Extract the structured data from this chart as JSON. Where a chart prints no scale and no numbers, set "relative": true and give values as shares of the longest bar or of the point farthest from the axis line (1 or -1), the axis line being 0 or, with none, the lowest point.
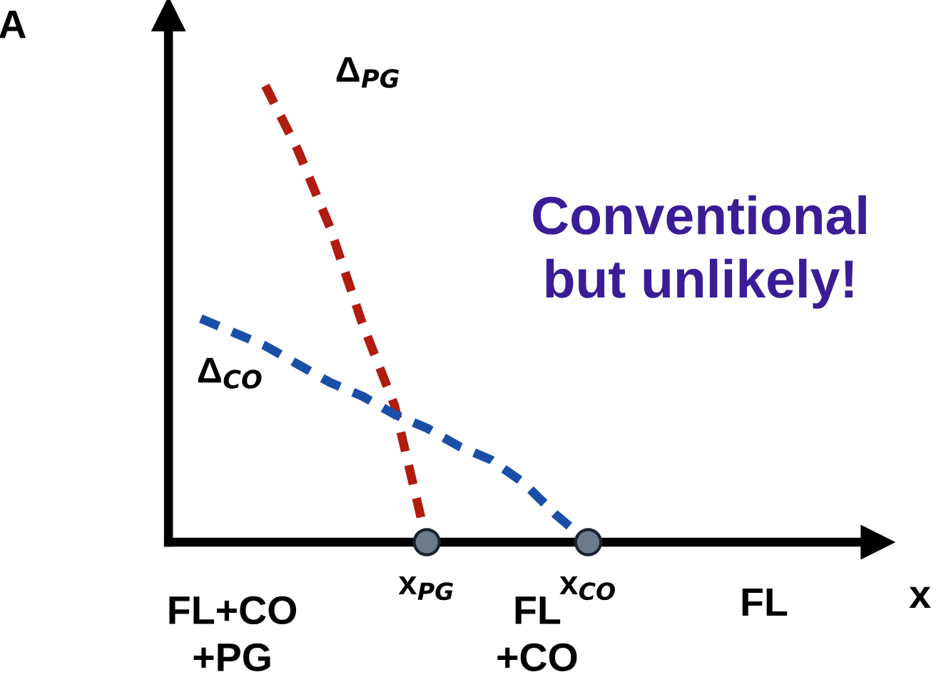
{
  "chart_data": {
    "type": "line",
    "relative": true,
    "xlabel": "x",
    "ylabel": "A",
    "categories": [
      null,
      null,
      null,
      null,
      null,
      null,
      null,
      null,
      "x$_{PG}$",
      null,
      null,
      null,
      null,
      "x$_{CO}$",
      null,
      null,
      null,
      null,
      null,
      null,
      null,
      null
    ],
    "series": [
      {
        "color": "#b01c0f",
        "values": [
          null,
          null,
          null,
          1,
          0.86,
          0.69,
          0.48,
          0.3,
          0,
          null,
          null,
          null,
          null,
          null,
          null,
          null,
          null,
          null,
          null,
          null,
          null,
          null
        ],
        "line_style": "dashed",
        "marker": "none"
      },
      {
        "color": "#1a4fa8",
        "values": [
          null,
          0.49,
          0.46,
          0.43,
          0.39,
          0.35,
          0.32,
          0.28,
          0.25,
          0.21,
          0.18,
          0.13,
          0.06,
          0,
          null,
          null,
          null,
          null,
          null,
          null,
          null,
          null
        ],
        "line_style": "dashed",
        "marker": "none"
      },
      {
        "type": "scatter",
        "color": "#6b7b8c",
        "values": [
          null,
          null,
          null,
          null,
          null,
          null,
          null,
          null,
          0,
          null,
          null,
          null,
          null,
          0,
          null,
          null,
          null,
          null,
          null,
          null,
          null,
          null
        ],
        "marker": "circle"
      }
    ],
    "annotations": [
      "Δ$_{PG}$",
      "Δ$_{CO}$",
      "Conventional\nbut unlikely!",
      "FL+CO\n+PG",
      "FL\n+CO",
      "FL"
    ],
    "grid": false,
    "legend": false
  }
}
